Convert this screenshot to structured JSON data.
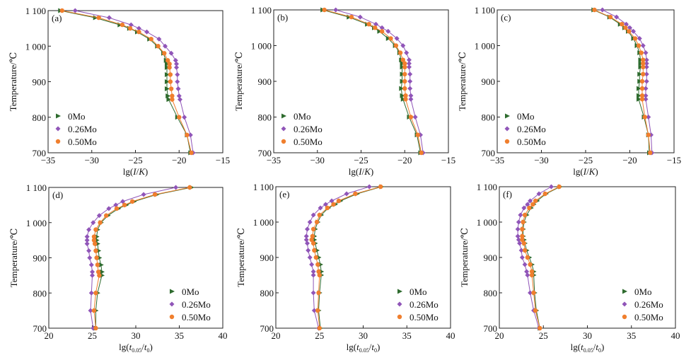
{
  "chart_data": [
    {
      "type": "line",
      "panel": "(a)",
      "xlabel": "lg(I/K)",
      "ylabel": "Temperature/℃",
      "xlim": [
        -35,
        -15
      ],
      "ylim": [
        700,
        1100
      ],
      "xticks": [
        -35,
        -30,
        -25,
        -20,
        -15
      ],
      "xtick_labels": [
        "−35",
        "−30",
        "−25",
        "−20",
        "−15"
      ],
      "yticks": [
        700,
        800,
        900,
        1000,
        1100
      ],
      "ytick_labels": [
        "700",
        "800",
        "900",
        "1 000",
        "1 100"
      ],
      "legend_position": "lower-left",
      "y": [
        1100,
        1080,
        1060,
        1050,
        1040,
        1020,
        1000,
        980,
        960,
        950,
        940,
        920,
        900,
        880,
        860,
        850,
        800,
        750,
        700
      ],
      "series": [
        {
          "name": "0Mo",
          "marker": "triangle-right",
          "color": "#2e6b2e",
          "values": [
            -33.6,
            -29.6,
            -26.8,
            -25.7,
            -24.8,
            -23.4,
            -22.5,
            -21.8,
            -21.5,
            -21.4,
            -21.4,
            -21.4,
            -21.4,
            -21.4,
            -21.3,
            -21.2,
            -20.2,
            -19.1,
            -18.7
          ]
        },
        {
          "name": "0.26Mo",
          "marker": "diamond",
          "color": "#9055b8",
          "values": [
            -31.9,
            -28.0,
            -25.5,
            -24.6,
            -23.7,
            -22.3,
            -21.6,
            -20.9,
            -20.4,
            -20.3,
            -20.3,
            -20.2,
            -20.2,
            -20.1,
            -20.0,
            -19.9,
            -19.4,
            -18.7,
            -18.4
          ]
        },
        {
          "name": "0.50Mo",
          "marker": "circle",
          "color": "#f07f2e",
          "values": [
            -33.4,
            -29.2,
            -26.5,
            -25.6,
            -24.6,
            -23.2,
            -22.4,
            -21.7,
            -21.3,
            -21.1,
            -21.1,
            -21.0,
            -21.0,
            -20.9,
            -20.8,
            -20.8,
            -20.0,
            -19.1,
            -18.6
          ]
        }
      ]
    },
    {
      "type": "line",
      "panel": "(b)",
      "xlabel": "lg(I/K)",
      "ylabel": "Temperature/℃",
      "xlim": [
        -35,
        -15
      ],
      "ylim": [
        700,
        1100
      ],
      "xticks": [
        -35,
        -30,
        -25,
        -20,
        -15
      ],
      "xtick_labels": [
        "−35",
        "−30",
        "−25",
        "−20",
        "−15"
      ],
      "yticks": [
        700,
        800,
        900,
        1000,
        1100
      ],
      "ytick_labels": [
        "700",
        "800",
        "900",
        "1 000",
        "1 100"
      ],
      "legend_position": "lower-left",
      "y": [
        1100,
        1080,
        1060,
        1050,
        1040,
        1020,
        1000,
        980,
        960,
        950,
        940,
        920,
        900,
        880,
        860,
        850,
        800,
        750,
        700
      ],
      "series": [
        {
          "name": "0Mo",
          "marker": "triangle-right",
          "color": "#2e6b2e",
          "values": [
            -29.4,
            -26.4,
            -24.3,
            -23.5,
            -22.9,
            -21.9,
            -21.1,
            -20.6,
            -20.4,
            -20.3,
            -20.3,
            -20.3,
            -20.3,
            -20.4,
            -20.3,
            -20.2,
            -19.5,
            -18.6,
            -18.2
          ]
        },
        {
          "name": "0.26Mo",
          "marker": "diamond",
          "color": "#9055b8",
          "values": [
            -27.9,
            -25.1,
            -23.3,
            -22.6,
            -21.9,
            -20.9,
            -20.2,
            -19.8,
            -19.5,
            -19.5,
            -19.5,
            -19.4,
            -19.4,
            -19.4,
            -19.3,
            -19.3,
            -18.8,
            -18.2,
            -17.9
          ]
        },
        {
          "name": "0.50Mo",
          "marker": "circle",
          "color": "#f07f2e",
          "values": [
            -29.2,
            -26.1,
            -24.1,
            -23.4,
            -22.6,
            -21.6,
            -21.0,
            -20.5,
            -20.2,
            -20.0,
            -20.0,
            -20.0,
            -20.0,
            -20.0,
            -19.9,
            -19.9,
            -19.3,
            -18.5,
            -18.1
          ]
        }
      ]
    },
    {
      "type": "line",
      "panel": "(c)",
      "xlabel": "lg(I/K)",
      "ylabel": "Temperature/℃",
      "xlim": [
        -35,
        -15
      ],
      "ylim": [
        700,
        1100
      ],
      "xticks": [
        -35,
        -30,
        -25,
        -20,
        -15
      ],
      "xtick_labels": [
        "−35",
        "−30",
        "−25",
        "−20",
        "−15"
      ],
      "yticks": [
        700,
        800,
        900,
        1000,
        1100
      ],
      "ytick_labels": [
        "700",
        "800",
        "900",
        "1 000",
        "1 100"
      ],
      "legend_position": "lower-left",
      "y": [
        1100,
        1080,
        1060,
        1050,
        1040,
        1020,
        1000,
        980,
        960,
        950,
        940,
        920,
        900,
        880,
        860,
        850,
        800,
        750,
        700
      ],
      "series": [
        {
          "name": "0Mo",
          "marker": "triangle-right",
          "color": "#2e6b2e",
          "values": [
            -24.1,
            -22.3,
            -21.1,
            -20.6,
            -20.2,
            -19.6,
            -19.2,
            -18.9,
            -18.8,
            -18.8,
            -18.8,
            -18.9,
            -18.9,
            -19.0,
            -19.0,
            -19.0,
            -18.4,
            -17.9,
            -17.8
          ]
        },
        {
          "name": "0.26Mo",
          "marker": "diamond",
          "color": "#9055b8",
          "values": [
            -23.1,
            -21.5,
            -20.4,
            -20.0,
            -19.6,
            -18.9,
            -18.5,
            -18.2,
            -18.1,
            -18.1,
            -18.1,
            -18.1,
            -18.1,
            -18.2,
            -18.2,
            -18.2,
            -17.9,
            -17.6,
            -17.5
          ]
        },
        {
          "name": "0.50Mo",
          "marker": "circle",
          "color": "#f07f2e",
          "values": [
            -24.0,
            -22.2,
            -20.9,
            -20.5,
            -20.1,
            -19.4,
            -19.0,
            -18.7,
            -18.5,
            -18.5,
            -18.5,
            -18.5,
            -18.6,
            -18.6,
            -18.6,
            -18.6,
            -18.3,
            -17.9,
            -17.7
          ]
        }
      ]
    },
    {
      "type": "line",
      "panel": "(d)",
      "xlabel": "lg(t0.05/t0)",
      "ylabel": "Temperature/℃",
      "xlim": [
        20,
        40
      ],
      "ylim": [
        700,
        1100
      ],
      "xticks": [
        20,
        25,
        30,
        35,
        40
      ],
      "xtick_labels": [
        "20",
        "25",
        "30",
        "35",
        "40"
      ],
      "yticks": [
        700,
        800,
        900,
        1000,
        1100
      ],
      "ytick_labels": [
        "700",
        "800",
        "900",
        "1 000",
        "1 100"
      ],
      "legend_position": "lower-right",
      "y": [
        1100,
        1080,
        1060,
        1050,
        1040,
        1020,
        1000,
        980,
        960,
        950,
        940,
        920,
        900,
        880,
        860,
        850,
        800,
        750,
        700
      ],
      "series": [
        {
          "name": "0Mo",
          "marker": "triangle-right",
          "color": "#2e6b2e",
          "values": [
            36.4,
            32.4,
            29.8,
            28.9,
            28.0,
            26.8,
            26.0,
            25.6,
            25.5,
            25.5,
            25.6,
            25.7,
            25.8,
            26.0,
            26.1,
            26.1,
            25.6,
            25.4,
            25.4
          ]
        },
        {
          "name": "0.26Mo",
          "marker": "diamond",
          "color": "#9055b8",
          "values": [
            34.6,
            30.9,
            28.5,
            27.7,
            26.9,
            25.8,
            25.1,
            24.6,
            24.4,
            24.4,
            24.4,
            24.6,
            24.7,
            24.9,
            25.0,
            25.0,
            24.9,
            24.8,
            25.1
          ]
        },
        {
          "name": "0.50Mo",
          "marker": "circle",
          "color": "#f07f2e",
          "values": [
            36.2,
            32.2,
            29.6,
            28.7,
            27.8,
            26.6,
            25.9,
            25.4,
            25.2,
            25.2,
            25.3,
            25.4,
            25.5,
            25.6,
            25.7,
            25.8,
            25.4,
            25.2,
            25.4
          ]
        }
      ]
    },
    {
      "type": "line",
      "panel": "(e)",
      "xlabel": "lg(t0.05/t0)",
      "ylabel": "Temperature/℃",
      "xlim": [
        20,
        40
      ],
      "ylim": [
        700,
        1100
      ],
      "xticks": [
        20,
        25,
        30,
        35,
        40
      ],
      "xtick_labels": [
        "20",
        "25",
        "30",
        "35",
        "40"
      ],
      "yticks": [
        700,
        800,
        900,
        1000,
        1100
      ],
      "ytick_labels": [
        "700",
        "800",
        "900",
        "1 000",
        "1 100"
      ],
      "legend_position": "lower-right",
      "y": [
        1100,
        1080,
        1060,
        1050,
        1040,
        1020,
        1000,
        980,
        960,
        950,
        940,
        920,
        900,
        880,
        860,
        850,
        800,
        750,
        700
      ],
      "series": [
        {
          "name": "0Mo",
          "marker": "triangle-right",
          "color": "#2e6b2e",
          "values": [
            32.1,
            29.3,
            27.4,
            26.8,
            26.0,
            25.2,
            24.8,
            24.5,
            24.4,
            24.4,
            24.5,
            24.7,
            24.9,
            25.1,
            25.2,
            25.2,
            25.0,
            24.9,
            25.1
          ]
        },
        {
          "name": "0.26Mo",
          "marker": "diamond",
          "color": "#9055b8",
          "values": [
            30.7,
            28.1,
            26.4,
            25.7,
            25.1,
            24.3,
            23.9,
            23.6,
            23.5,
            23.5,
            23.6,
            23.7,
            23.9,
            24.1,
            24.3,
            24.3,
            24.3,
            24.4,
            24.9
          ]
        },
        {
          "name": "0.50Mo",
          "marker": "circle",
          "color": "#f07f2e",
          "values": [
            32.0,
            29.1,
            27.2,
            26.6,
            25.9,
            25.0,
            24.7,
            24.3,
            24.2,
            24.1,
            24.3,
            24.4,
            24.6,
            24.8,
            24.9,
            25.0,
            24.9,
            24.8,
            25.0
          ]
        }
      ]
    },
    {
      "type": "line",
      "panel": "(f)",
      "xlabel": "lg(t0.05/t0)",
      "ylabel": "Temperature/℃",
      "xlim": [
        20,
        40
      ],
      "ylim": [
        700,
        1100
      ],
      "xticks": [
        20,
        25,
        30,
        35,
        40
      ],
      "xtick_labels": [
        "20",
        "25",
        "30",
        "35",
        "40"
      ],
      "yticks": [
        700,
        800,
        900,
        1000,
        1100
      ],
      "ytick_labels": [
        "700",
        "800",
        "900",
        "1 000",
        "1 100"
      ],
      "legend_position": "lower-right",
      "y": [
        1100,
        1080,
        1060,
        1050,
        1040,
        1020,
        1000,
        980,
        960,
        950,
        940,
        920,
        900,
        880,
        860,
        850,
        800,
        750,
        700
      ],
      "series": [
        {
          "name": "0Mo",
          "marker": "triangle-right",
          "color": "#2e6b2e",
          "values": [
            26.9,
            25.3,
            24.3,
            23.9,
            23.6,
            23.1,
            22.8,
            22.7,
            22.7,
            22.8,
            22.9,
            23.1,
            23.4,
            23.7,
            23.9,
            23.9,
            24.0,
            24.2,
            24.6
          ]
        },
        {
          "name": "0.26Mo",
          "marker": "diamond",
          "color": "#9055b8",
          "values": [
            25.9,
            24.5,
            23.5,
            23.2,
            22.8,
            22.4,
            22.2,
            22.1,
            22.1,
            22.2,
            22.3,
            22.5,
            22.6,
            22.9,
            23.1,
            23.2,
            23.5,
            23.9,
            24.5
          ]
        },
        {
          "name": "0.50Mo",
          "marker": "circle",
          "color": "#f07f2e",
          "values": [
            26.8,
            25.2,
            24.1,
            23.8,
            23.4,
            22.9,
            22.7,
            22.6,
            22.6,
            22.6,
            22.8,
            22.9,
            23.2,
            23.5,
            23.7,
            23.7,
            23.9,
            24.1,
            24.6
          ]
        }
      ]
    }
  ]
}
